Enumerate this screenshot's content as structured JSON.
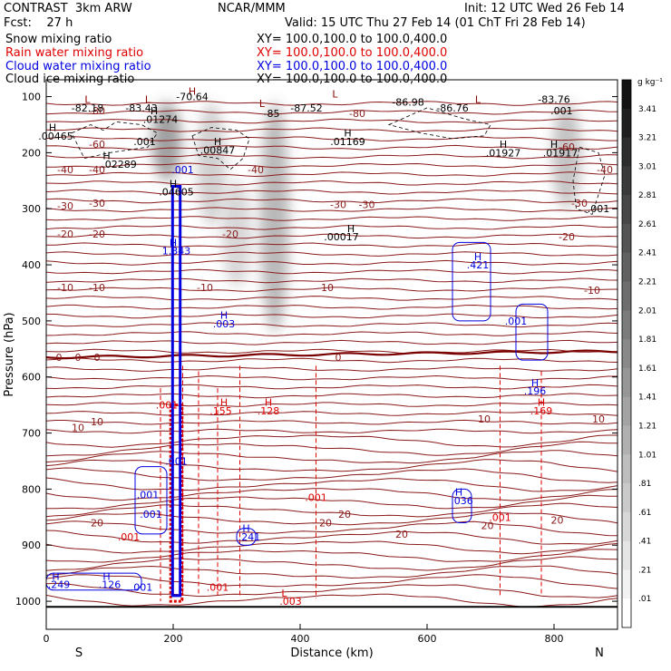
{
  "header": {
    "left1": "CONTRAST  3km ARW",
    "left2": "Fcst:    27 h",
    "center": "NCAR/MMM",
    "init": "Init: 12 UTC Wed 26 Feb 14",
    "valid": "Valid: 15 UTC Thu 27 Feb 14 (01 ChT Fri 28 Feb 14)"
  },
  "fields": [
    {
      "name": "Snow mixing ratio",
      "xy": "XY= 100.0,100.0 to 100.0,400.0",
      "color": "#000000"
    },
    {
      "name": "Rain water mixing ratio",
      "xy": "XY= 100.0,100.0 to 100.0,400.0",
      "color": "#e00000"
    },
    {
      "name": "Cloud water mixing ratio",
      "xy": "XY= 100.0,100.0 to 100.0,400.0",
      "color": "#0000e0"
    },
    {
      "name": "Cloud ice mixing ratio",
      "xy": "XY= 100.0,100.0 to 100.0,400.0",
      "color": "#000000"
    }
  ],
  "chart_data": {
    "type": "heatmap",
    "xlabel": "Distance (km)",
    "ylabel": "Pressure (hPa)",
    "xlim": [
      0,
      900
    ],
    "ylim": [
      1050,
      70
    ],
    "x_ticks": [
      "0",
      "200",
      "400",
      "600",
      "800"
    ],
    "x_tick_values": [
      0,
      200,
      400,
      600,
      800
    ],
    "y_ticks": [
      "100",
      "200",
      "300",
      "400",
      "500",
      "600",
      "700",
      "800",
      "900",
      "1000"
    ],
    "y_tick_values": [
      100,
      200,
      300,
      400,
      500,
      600,
      700,
      800,
      900,
      1000
    ],
    "end_labels": {
      "left": "S",
      "right": "N"
    },
    "colorbar": {
      "unit": "g kg⁻¹",
      "levels": [
        "3.41",
        "3.21",
        "3.01",
        "2.81",
        "2.61",
        "2.41",
        "2.21",
        "2.01",
        "1.81",
        "1.61",
        "1.41",
        "1.21",
        "1.01",
        ".81",
        ".61",
        ".41",
        ".21",
        ".01"
      ]
    },
    "temperature_contours": [
      {
        "label": "-80",
        "p": 125
      },
      {
        "label": "-60",
        "p": 185
      },
      {
        "label": "-40",
        "p": 230
      },
      {
        "label": "-30",
        "p": 290
      },
      {
        "label": "-20",
        "p": 345
      },
      {
        "label": "-10",
        "p": 440
      },
      {
        "label": "0",
        "p": 565
      },
      {
        "label": "10",
        "p": 680
      },
      {
        "label": "20",
        "p": 860
      }
    ],
    "snow_shading": [
      {
        "x": 190,
        "p1": 110,
        "p2": 250,
        "intensity": 0.8
      },
      {
        "x": 260,
        "p1": 110,
        "p2": 330,
        "intensity": 0.4
      },
      {
        "x": 360,
        "p1": 110,
        "p2": 520,
        "intensity": 0.6
      },
      {
        "x": 300,
        "p1": 250,
        "p2": 440,
        "intensity": 0.35
      },
      {
        "x": 820,
        "p1": 110,
        "p2": 300,
        "intensity": 0.5
      }
    ],
    "annotations": [
      {
        "text": "L",
        "x": 65,
        "p": 105,
        "color": "#8b0000"
      },
      {
        "text": "-82.18",
        "x": 65,
        "p": 120,
        "color": "#000000"
      },
      {
        "text": "L",
        "x": 160,
        "p": 105,
        "color": "#8b0000"
      },
      {
        "text": "-83.43",
        "x": 150,
        "p": 120,
        "color": "#000000"
      },
      {
        "text": "H",
        "x": 230,
        "p": 90,
        "color": "#8b0000"
      },
      {
        "text": "-70.64",
        "x": 230,
        "p": 100,
        "color": "#000000"
      },
      {
        "text": "L",
        "x": 340,
        "p": 112,
        "color": "#8b0000"
      },
      {
        "text": "-85",
        "x": 355,
        "p": 130,
        "color": "#000000"
      },
      {
        "text": "-87.52",
        "x": 410,
        "p": 120,
        "color": "#000000"
      },
      {
        "text": "L",
        "x": 455,
        "p": 95,
        "color": "#8b0000"
      },
      {
        "text": "-86.98",
        "x": 570,
        "p": 110,
        "color": "#000000"
      },
      {
        "text": "-86.76",
        "x": 640,
        "p": 120,
        "color": "#000000"
      },
      {
        "text": "L",
        "x": 680,
        "p": 105,
        "color": "#8b0000"
      },
      {
        "text": "-83.76",
        "x": 800,
        "p": 105,
        "color": "#000000"
      },
      {
        "text": ".001",
        "x": 812,
        "p": 125,
        "color": "#000000"
      },
      {
        "text": "H",
        "x": 10,
        "p": 155,
        "color": "#000000"
      },
      {
        "text": ".00465",
        "x": 15,
        "p": 170,
        "color": "#000000"
      },
      {
        "text": "H",
        "x": 170,
        "p": 125,
        "color": "#000000"
      },
      {
        "text": ".01274",
        "x": 180,
        "p": 140,
        "color": "#000000"
      },
      {
        "text": ".001",
        "x": 155,
        "p": 180,
        "color": "#000000"
      },
      {
        "text": "H",
        "x": 270,
        "p": 180,
        "color": "#000000"
      },
      {
        "text": ".00847",
        "x": 270,
        "p": 195,
        "color": "#000000"
      },
      {
        "text": "H",
        "x": 475,
        "p": 165,
        "color": "#000000"
      },
      {
        "text": ".01169",
        "x": 475,
        "p": 180,
        "color": "#000000"
      },
      {
        "text": "H",
        "x": 720,
        "p": 185,
        "color": "#000000"
      },
      {
        "text": ".01927",
        "x": 720,
        "p": 200,
        "color": "#000000"
      },
      {
        "text": "H",
        "x": 800,
        "p": 185,
        "color": "#000000"
      },
      {
        "text": ".01917",
        "x": 810,
        "p": 200,
        "color": "#000000"
      },
      {
        "text": "H",
        "x": 95,
        "p": 205,
        "color": "#000000"
      },
      {
        "text": ".02289",
        "x": 115,
        "p": 220,
        "color": "#000000"
      },
      {
        "text": ".001",
        "x": 215,
        "p": 230,
        "color": "#0000e0"
      },
      {
        "text": "H",
        "x": 200,
        "p": 255,
        "color": "#000000"
      },
      {
        "text": ".04605",
        "x": 205,
        "p": 270,
        "color": "#000000"
      },
      {
        "text": ".001",
        "x": 870,
        "p": 300,
        "color": "#000000"
      },
      {
        "text": "H",
        "x": 480,
        "p": 335,
        "color": "#000000"
      },
      {
        "text": ".00017",
        "x": 465,
        "p": 350,
        "color": "#000000"
      },
      {
        "text": "H",
        "x": 200,
        "p": 360,
        "color": "#0000e0"
      },
      {
        "text": "1.343",
        "x": 205,
        "p": 375,
        "color": "#0000e0"
      },
      {
        "text": "H",
        "x": 680,
        "p": 385,
        "color": "#0000e0"
      },
      {
        "text": ".421",
        "x": 680,
        "p": 400,
        "color": "#0000e0"
      },
      {
        "text": "H",
        "x": 280,
        "p": 490,
        "color": "#0000e0"
      },
      {
        "text": ".003",
        "x": 280,
        "p": 505,
        "color": "#0000e0"
      },
      {
        "text": ".001",
        "x": 740,
        "p": 500,
        "color": "#0000e0"
      },
      {
        "text": "H",
        "x": 770,
        "p": 610,
        "color": "#0000e0"
      },
      {
        "text": ".196",
        "x": 770,
        "p": 625,
        "color": "#0000e0"
      },
      {
        "text": "H",
        "x": 280,
        "p": 645,
        "color": "#e00000"
      },
      {
        "text": ".155",
        "x": 275,
        "p": 660,
        "color": "#e00000"
      },
      {
        "text": "H",
        "x": 350,
        "p": 645,
        "color": "#e00000"
      },
      {
        "text": ".128",
        "x": 350,
        "p": 660,
        "color": "#e00000"
      },
      {
        "text": "H",
        "x": 780,
        "p": 645,
        "color": "#e00000"
      },
      {
        "text": ".169",
        "x": 780,
        "p": 660,
        "color": "#e00000"
      },
      {
        "text": ".001",
        "x": 190,
        "p": 650,
        "color": "#e00000"
      },
      {
        "text": ".001",
        "x": 205,
        "p": 750,
        "color": "#0000e0"
      },
      {
        "text": ".001",
        "x": 160,
        "p": 810,
        "color": "#0000e0"
      },
      {
        "text": ".001",
        "x": 165,
        "p": 845,
        "color": "#0000e0"
      },
      {
        "text": "H",
        "x": 650,
        "p": 805,
        "color": "#0000e0"
      },
      {
        "text": ".036",
        "x": 655,
        "p": 820,
        "color": "#0000e0"
      },
      {
        "text": ".001",
        "x": 425,
        "p": 815,
        "color": "#e00000"
      },
      {
        "text": ".001",
        "x": 715,
        "p": 850,
        "color": "#e00000"
      },
      {
        "text": "H",
        "x": 315,
        "p": 870,
        "color": "#0000e0"
      },
      {
        "text": ".241",
        "x": 320,
        "p": 885,
        "color": "#0000e0"
      },
      {
        "text": ".001",
        "x": 130,
        "p": 885,
        "color": "#e00000"
      },
      {
        "text": "H",
        "x": 15,
        "p": 955,
        "color": "#0000e0"
      },
      {
        "text": ".249",
        "x": 20,
        "p": 970,
        "color": "#0000e0"
      },
      {
        "text": "H",
        "x": 95,
        "p": 955,
        "color": "#0000e0"
      },
      {
        "text": ".126",
        "x": 100,
        "p": 970,
        "color": "#0000e0"
      },
      {
        "text": ".001",
        "x": 150,
        "p": 975,
        "color": "#0000e0"
      },
      {
        "text": ".001",
        "x": 270,
        "p": 975,
        "color": "#e00000"
      },
      {
        "text": "L",
        "x": 375,
        "p": 985,
        "color": "#e00000"
      },
      {
        "text": ".003",
        "x": 385,
        "p": 1000,
        "color": "#e00000"
      }
    ],
    "extra_labels": [
      {
        "text": "-80",
        "x": 490,
        "p": 130
      },
      {
        "text": "-60",
        "x": 820,
        "p": 190
      },
      {
        "text": "-40",
        "x": 30,
        "p": 230
      },
      {
        "text": "-40",
        "x": 330,
        "p": 230
      },
      {
        "text": "-40",
        "x": 880,
        "p": 230
      },
      {
        "text": "-30",
        "x": 30,
        "p": 295
      },
      {
        "text": "-30",
        "x": 460,
        "p": 292
      },
      {
        "text": "-30",
        "x": 505,
        "p": 292
      },
      {
        "text": "-30",
        "x": 840,
        "p": 290
      },
      {
        "text": "-20",
        "x": 30,
        "p": 345
      },
      {
        "text": "-20",
        "x": 290,
        "p": 345
      },
      {
        "text": "-20",
        "x": 820,
        "p": 350
      },
      {
        "text": "-10",
        "x": 30,
        "p": 440
      },
      {
        "text": "-10",
        "x": 250,
        "p": 440
      },
      {
        "text": "-10",
        "x": 440,
        "p": 440
      },
      {
        "text": "-10",
        "x": 860,
        "p": 445
      },
      {
        "text": "0",
        "x": 20,
        "p": 565
      },
      {
        "text": "0",
        "x": 50,
        "p": 565
      },
      {
        "text": "0",
        "x": 460,
        "p": 565
      },
      {
        "text": "10",
        "x": 50,
        "p": 690
      },
      {
        "text": "10",
        "x": 690,
        "p": 675
      },
      {
        "text": "10",
        "x": 870,
        "p": 675
      },
      {
        "text": "20",
        "x": 470,
        "p": 845
      },
      {
        "text": "20",
        "x": 440,
        "p": 860
      },
      {
        "text": "20",
        "x": 560,
        "p": 880
      },
      {
        "text": "20",
        "x": 695,
        "p": 865
      },
      {
        "text": "20",
        "x": 805,
        "p": 855
      }
    ]
  }
}
